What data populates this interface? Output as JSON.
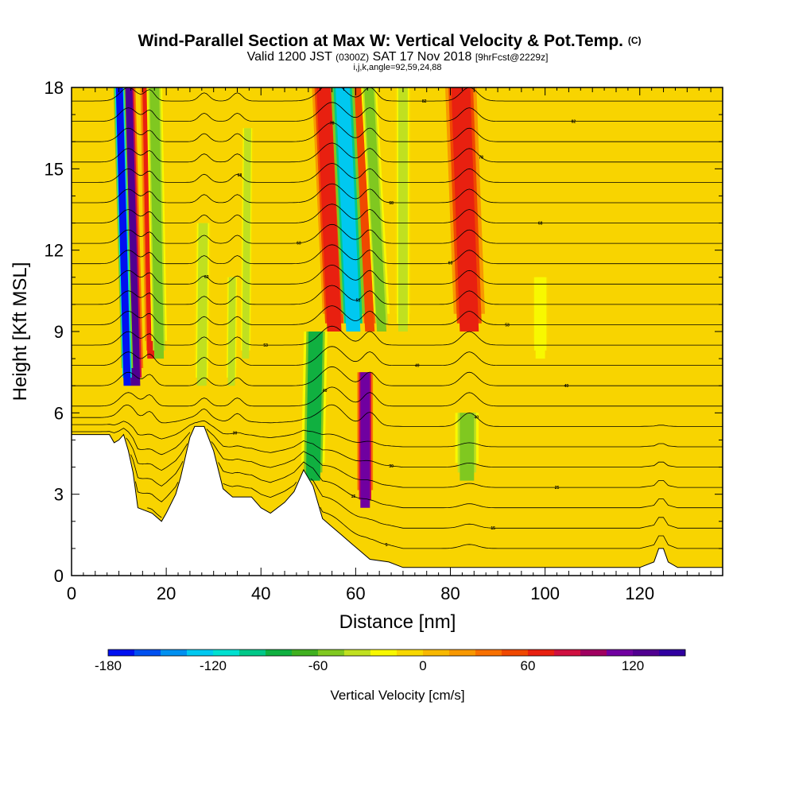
{
  "chart_data": {
    "type": "heatmap",
    "title": "Wind-Parallel Section at Max W: Vertical Velocity & Pot.Temp.",
    "title_mark": "(C)",
    "subtitle": {
      "prefix": "Valid 1200 JST",
      "zulu": "(0300Z)",
      "date": "SAT 17 Nov 2018",
      "forecast": "[9hrFcst@2229z]"
    },
    "subtitle2": "i,j,k,angle=92,59,24,88",
    "xlabel": "Distance [nm]",
    "ylabel": "Height [Kft MSL]",
    "xlim": [
      0,
      137.5
    ],
    "ylim": [
      0,
      18
    ],
    "x_ticks": [
      0,
      20,
      40,
      60,
      80,
      100,
      120
    ],
    "y_ticks": [
      0,
      3,
      6,
      9,
      12,
      15,
      18
    ],
    "colorbar": {
      "label": "Vertical Velocity [cm/s]",
      "min": -180,
      "max": 150,
      "step": 15,
      "tick_values": [
        -180,
        -120,
        -60,
        0,
        60,
        120
      ],
      "colors": [
        "#0010f0",
        "#0050f0",
        "#0090f0",
        "#00c8f0",
        "#00e0d0",
        "#00c888",
        "#10b040",
        "#40b020",
        "#80c820",
        "#c0e020",
        "#f8f800",
        "#f8d800",
        "#f8b800",
        "#f89800",
        "#f87000",
        "#f04800",
        "#e82010",
        "#d01040",
        "#a00060",
        "#7000a0",
        "#500090",
        "#3000a0"
      ]
    },
    "updraft_bands": [
      {
        "x0": 12.5,
        "x1": 14.5,
        "lean": -0.15,
        "top": 18,
        "bottom": 7,
        "w": 120
      },
      {
        "x0": 16,
        "x1": 17.5,
        "lean": -0.1,
        "top": 18,
        "bottom": 8,
        "w": 60
      },
      {
        "x0": 54,
        "x1": 57,
        "lean": -0.25,
        "top": 18,
        "bottom": 9,
        "w": 70
      },
      {
        "x0": 62,
        "x1": 64,
        "lean": -0.3,
        "top": 18,
        "bottom": 9,
        "w": 50
      },
      {
        "x0": 61,
        "x1": 63,
        "lean": 0,
        "top": 7.5,
        "bottom": 2.5,
        "w": 110
      },
      {
        "x0": 82,
        "x1": 86,
        "lean": -0.2,
        "top": 18,
        "bottom": 9,
        "w": 70
      }
    ],
    "downdraft_bands": [
      {
        "x0": 11,
        "x1": 12.5,
        "lean": -0.15,
        "top": 18,
        "bottom": 7,
        "w": -170
      },
      {
        "x0": 17.5,
        "x1": 19.5,
        "lean": -0.1,
        "top": 18,
        "bottom": 8,
        "w": -60
      },
      {
        "x0": 58,
        "x1": 61,
        "lean": -0.25,
        "top": 18,
        "bottom": 9,
        "w": -130
      },
      {
        "x0": 64.5,
        "x1": 66.5,
        "lean": -0.3,
        "top": 18,
        "bottom": 9,
        "w": -50
      },
      {
        "x0": 49.5,
        "x1": 52.5,
        "lean": 0.1,
        "top": 9,
        "bottom": 3.5,
        "w": -80
      },
      {
        "x0": 82,
        "x1": 85,
        "lean": 0,
        "top": 6,
        "bottom": 3.5,
        "w": -60
      },
      {
        "x0": 26.5,
        "x1": 28.5,
        "lean": 0.05,
        "top": 13,
        "bottom": 7,
        "w": -40
      },
      {
        "x0": 33,
        "x1": 34.5,
        "lean": 0.05,
        "top": 11,
        "bottom": 7,
        "w": -40
      },
      {
        "x0": 36,
        "x1": 37.5,
        "lean": 0.05,
        "top": 16.5,
        "bottom": 8,
        "w": -40
      },
      {
        "x0": 69,
        "x1": 71,
        "lean": 0,
        "top": 18,
        "bottom": 9,
        "w": -40
      },
      {
        "x0": 98,
        "x1": 100,
        "lean": 0,
        "top": 11,
        "bottom": 8,
        "w": -30
      }
    ],
    "terrain_kft": [
      [
        0,
        5.2
      ],
      [
        8,
        5.2
      ],
      [
        9,
        4.9
      ],
      [
        10,
        5.0
      ],
      [
        11,
        5.2
      ],
      [
        12,
        4.6
      ],
      [
        13,
        3.8
      ],
      [
        14,
        2.5
      ],
      [
        17,
        2.3
      ],
      [
        19,
        2.0
      ],
      [
        20,
        2.3
      ],
      [
        22,
        3.0
      ],
      [
        23,
        3.6
      ],
      [
        25,
        5.1
      ],
      [
        26,
        5.5
      ],
      [
        28,
        5.5
      ],
      [
        30,
        4.6
      ],
      [
        32,
        3.2
      ],
      [
        34,
        2.9
      ],
      [
        38,
        2.9
      ],
      [
        40,
        2.5
      ],
      [
        42,
        2.3
      ],
      [
        45,
        2.7
      ],
      [
        47,
        3.1
      ],
      [
        49,
        3.9
      ],
      [
        51,
        3.3
      ],
      [
        53,
        2.1
      ],
      [
        55,
        1.8
      ],
      [
        57,
        1.5
      ],
      [
        59,
        1.2
      ],
      [
        61,
        0.9
      ],
      [
        63,
        0.6
      ],
      [
        67,
        0.5
      ],
      [
        70,
        0.3
      ],
      [
        120,
        0.3
      ],
      [
        123,
        0.5
      ],
      [
        124,
        1.0
      ],
      [
        125,
        1.0
      ],
      [
        126,
        0.5
      ],
      [
        128,
        0.3
      ],
      [
        137.5,
        0.3
      ]
    ],
    "theta_contour_labels": [
      "5",
      "15",
      "15",
      "25",
      "30",
      "30",
      "40",
      "40",
      "49",
      "49",
      "53",
      "53",
      "53",
      "63",
      "63",
      "63",
      "68",
      "68",
      "68",
      "78",
      "78",
      "82",
      "82"
    ]
  }
}
